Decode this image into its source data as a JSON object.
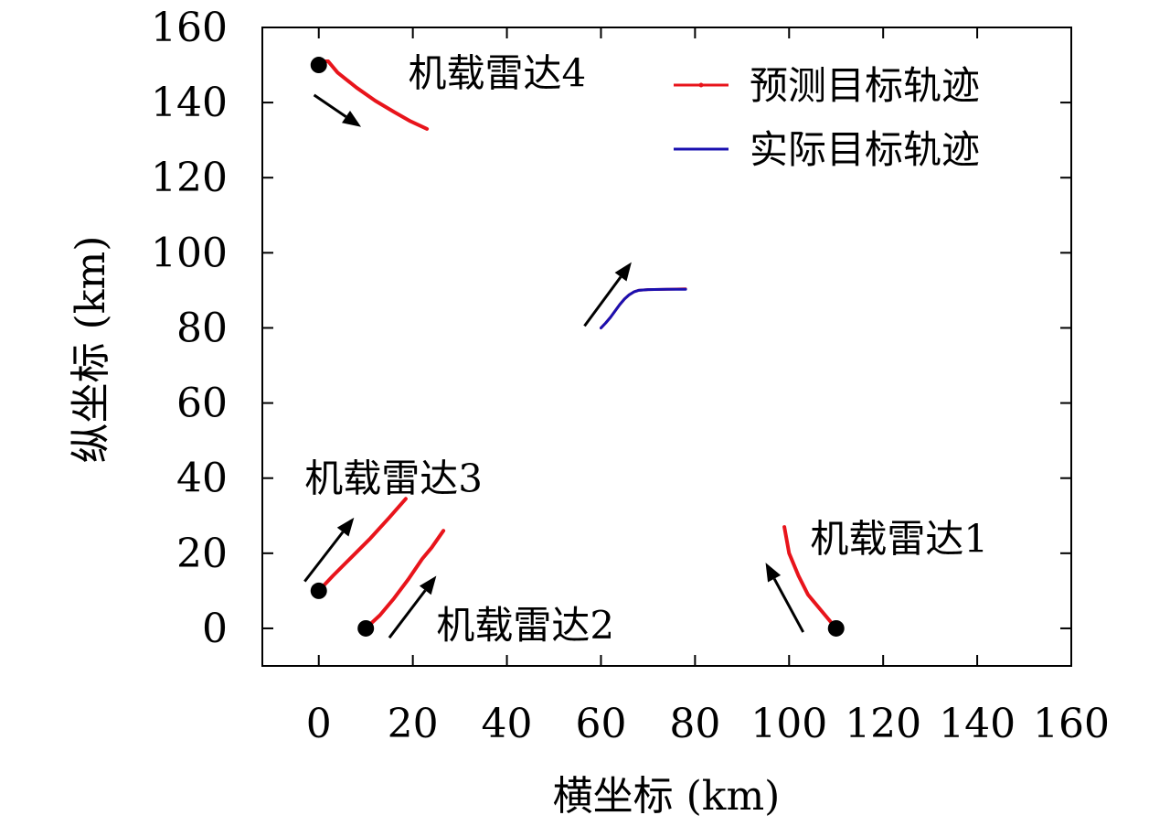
{
  "chart_data": {
    "type": "line",
    "xlabel": "横坐标 (km)",
    "ylabel": "纵坐标 (km)",
    "xlim": [
      -12,
      160
    ],
    "ylim": [
      -10,
      160
    ],
    "xticks": [
      0,
      20,
      40,
      60,
      80,
      100,
      120,
      140,
      160
    ],
    "yticks": [
      0,
      20,
      40,
      60,
      80,
      100,
      120,
      140,
      160
    ],
    "legend": {
      "placement": "top-right",
      "entries": [
        {
          "label": "预测目标轨迹",
          "color": "#e8141b"
        },
        {
          "label": "实际目标轨迹",
          "color": "#1a10b0"
        }
      ]
    },
    "series": [
      {
        "name": "预测目标轨迹",
        "group": "target",
        "color": "#e8141b",
        "points": [
          [
            60,
            80
          ],
          [
            61,
            81.3
          ],
          [
            62,
            82.8
          ],
          [
            63,
            84.5
          ],
          [
            64,
            86.2
          ],
          [
            65,
            87.7
          ],
          [
            66,
            88.8
          ],
          [
            67,
            89.6
          ],
          [
            68,
            90.0
          ],
          [
            70,
            90.2
          ],
          [
            74,
            90.3
          ],
          [
            78,
            90.4
          ]
        ]
      },
      {
        "name": "实际目标轨迹",
        "group": "target",
        "color": "#1a10b0",
        "points": [
          [
            60,
            80
          ],
          [
            61,
            81.3
          ],
          [
            62,
            82.8
          ],
          [
            63,
            84.5
          ],
          [
            64,
            86.2
          ],
          [
            65,
            87.7
          ],
          [
            66,
            88.8
          ],
          [
            67,
            89.6
          ],
          [
            68,
            90.0
          ],
          [
            70,
            90.2
          ],
          [
            74,
            90.3
          ],
          [
            78,
            90.3
          ]
        ]
      },
      {
        "name": "机载雷达1",
        "group": "radar",
        "color": "#e8141b",
        "points": [
          [
            110,
            0
          ],
          [
            107,
            4.5
          ],
          [
            104,
            9
          ],
          [
            102,
            14
          ],
          [
            100,
            20
          ],
          [
            99,
            27
          ]
        ]
      },
      {
        "name": "机载雷达2",
        "group": "radar",
        "color": "#e8141b",
        "points": [
          [
            10,
            0
          ],
          [
            13,
            3.5
          ],
          [
            16,
            8
          ],
          [
            19,
            13
          ],
          [
            22,
            18.5
          ],
          [
            24,
            21.5
          ],
          [
            26.5,
            26
          ]
        ]
      },
      {
        "name": "机载雷达3",
        "group": "radar",
        "color": "#e8141b",
        "points": [
          [
            0,
            10
          ],
          [
            3,
            14
          ],
          [
            7,
            19
          ],
          [
            11,
            24
          ],
          [
            15,
            29.5
          ],
          [
            18.5,
            34.5
          ]
        ]
      },
      {
        "name": "机载雷达4",
        "group": "radar",
        "color": "#e8141b",
        "points": [
          [
            0,
            150
          ],
          [
            1,
            151
          ],
          [
            2,
            151
          ],
          [
            4,
            148
          ],
          [
            8,
            144
          ],
          [
            12,
            140.5
          ],
          [
            16,
            137.5
          ],
          [
            19.5,
            135
          ],
          [
            23,
            133
          ]
        ]
      }
    ],
    "radar_positions": [
      [
        110,
        0
      ],
      [
        10,
        0
      ],
      [
        0,
        10
      ],
      [
        0,
        150
      ]
    ],
    "arrows": [
      {
        "from": [
          103,
          -1
        ],
        "to": [
          95,
          17.5
        ]
      },
      {
        "from": [
          15,
          -2.5
        ],
        "to": [
          25,
          14
        ]
      },
      {
        "from": [
          -3,
          12.5
        ],
        "to": [
          7.5,
          29.5
        ]
      },
      {
        "from": [
          -1,
          142
        ],
        "to": [
          9,
          133.5
        ]
      },
      {
        "from": [
          56.5,
          80.5
        ],
        "to": [
          66.5,
          97.5
        ]
      }
    ],
    "annotations": [
      {
        "text": "机载雷达1",
        "x": 104.5,
        "y": 24
      },
      {
        "text": "机载雷达2",
        "x": 25,
        "y": 1
      },
      {
        "text": "机载雷达3",
        "x": -3,
        "y": 40
      },
      {
        "text": "机载雷达4",
        "x": 19,
        "y": 148
      }
    ],
    "grid": false
  }
}
